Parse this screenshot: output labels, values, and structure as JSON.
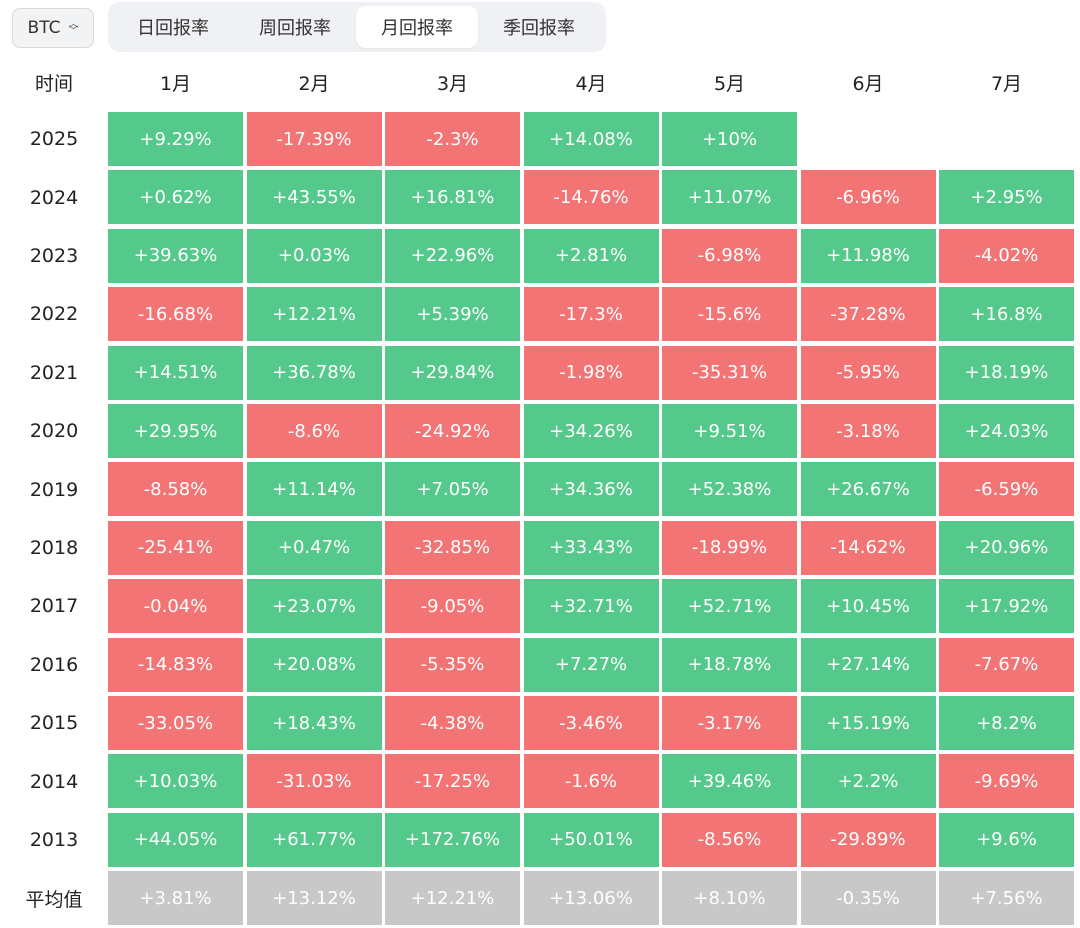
{
  "asset_selector": {
    "value": "BTC"
  },
  "tabs": [
    {
      "label": "日回报率",
      "active": false
    },
    {
      "label": "周回报率",
      "active": false
    },
    {
      "label": "月回报率",
      "active": true
    },
    {
      "label": "季回报率",
      "active": false
    }
  ],
  "table": {
    "columns": [
      "时间",
      "1月",
      "2月",
      "3月",
      "4月",
      "5月",
      "6月",
      "7月"
    ],
    "rows": [
      {
        "year": "2025",
        "values": [
          "+9.29%",
          "-17.39%",
          "-2.3%",
          "+14.08%",
          "+10%",
          "",
          ""
        ]
      },
      {
        "year": "2024",
        "values": [
          "+0.62%",
          "+43.55%",
          "+16.81%",
          "-14.76%",
          "+11.07%",
          "-6.96%",
          "+2.95%"
        ]
      },
      {
        "year": "2023",
        "values": [
          "+39.63%",
          "+0.03%",
          "+22.96%",
          "+2.81%",
          "-6.98%",
          "+11.98%",
          "-4.02%"
        ]
      },
      {
        "year": "2022",
        "values": [
          "-16.68%",
          "+12.21%",
          "+5.39%",
          "-17.3%",
          "-15.6%",
          "-37.28%",
          "+16.8%"
        ]
      },
      {
        "year": "2021",
        "values": [
          "+14.51%",
          "+36.78%",
          "+29.84%",
          "-1.98%",
          "-35.31%",
          "-5.95%",
          "+18.19%"
        ]
      },
      {
        "year": "2020",
        "values": [
          "+29.95%",
          "-8.6%",
          "-24.92%",
          "+34.26%",
          "+9.51%",
          "-3.18%",
          "+24.03%"
        ]
      },
      {
        "year": "2019",
        "values": [
          "-8.58%",
          "+11.14%",
          "+7.05%",
          "+34.36%",
          "+52.38%",
          "+26.67%",
          "-6.59%"
        ]
      },
      {
        "year": "2018",
        "values": [
          "-25.41%",
          "+0.47%",
          "-32.85%",
          "+33.43%",
          "-18.99%",
          "-14.62%",
          "+20.96%"
        ]
      },
      {
        "year": "2017",
        "values": [
          "-0.04%",
          "+23.07%",
          "-9.05%",
          "+32.71%",
          "+52.71%",
          "+10.45%",
          "+17.92%"
        ]
      },
      {
        "year": "2016",
        "values": [
          "-14.83%",
          "+20.08%",
          "-5.35%",
          "+7.27%",
          "+18.78%",
          "+27.14%",
          "-7.67%"
        ]
      },
      {
        "year": "2015",
        "values": [
          "-33.05%",
          "+18.43%",
          "-4.38%",
          "-3.46%",
          "-3.17%",
          "+15.19%",
          "+8.2%"
        ]
      },
      {
        "year": "2014",
        "values": [
          "+10.03%",
          "-31.03%",
          "-17.25%",
          "-1.6%",
          "+39.46%",
          "+2.2%",
          "-9.69%"
        ]
      },
      {
        "year": "2013",
        "values": [
          "+44.05%",
          "+61.77%",
          "+172.76%",
          "+50.01%",
          "-8.56%",
          "-29.89%",
          "+9.6%"
        ]
      }
    ],
    "average": {
      "label": "平均值",
      "values": [
        "+3.81%",
        "+13.12%",
        "+12.21%",
        "+13.06%",
        "+8.10%",
        "-0.35%",
        "+7.56%"
      ]
    }
  },
  "colors": {
    "positive": "#55c98b",
    "negative": "#f27474",
    "average": "#c8c8c8"
  }
}
